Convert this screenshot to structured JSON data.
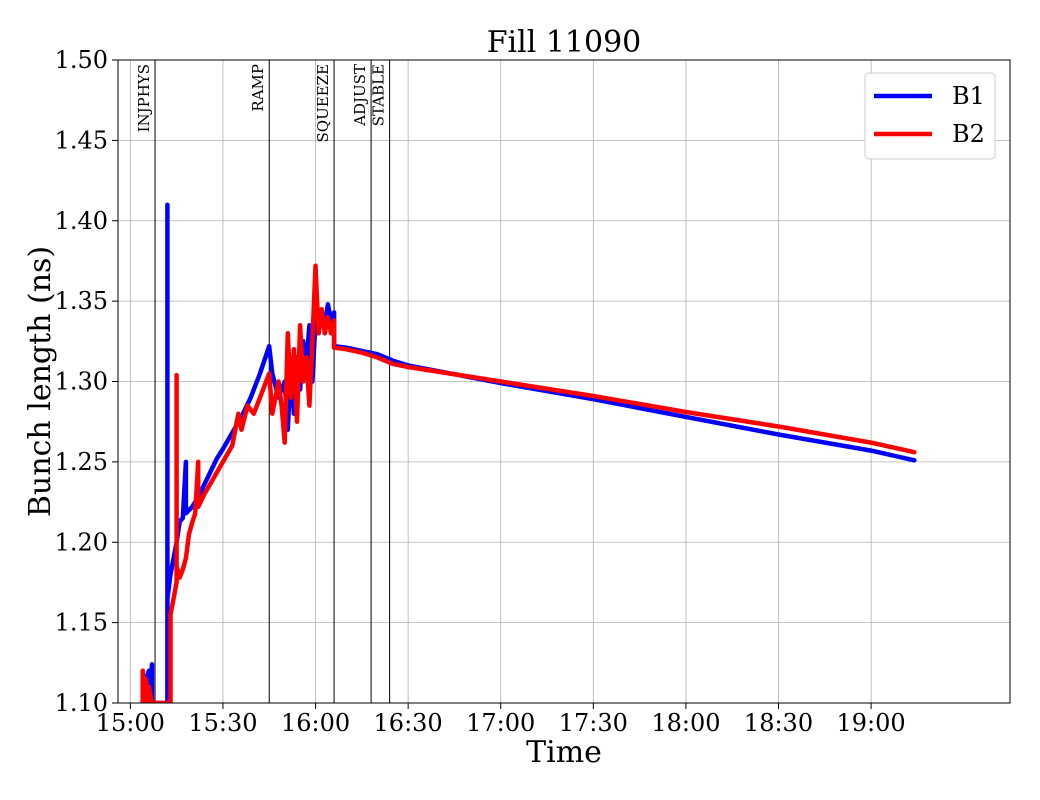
{
  "chart_data": {
    "type": "line",
    "title": "Fill 11090",
    "xlabel": "Time",
    "ylabel": "Bunch length (ns)",
    "x_unit": "time of day (HH:MM)",
    "xlim": [
      "14:56",
      "19:45"
    ],
    "ylim": [
      1.1,
      1.5
    ],
    "xticks": [
      "15:00",
      "15:30",
      "16:00",
      "16:30",
      "17:00",
      "17:30",
      "18:00",
      "18:30",
      "19:00"
    ],
    "yticks": [
      "1.10",
      "1.15",
      "1.20",
      "1.25",
      "1.30",
      "1.35",
      "1.40",
      "1.45",
      "1.50"
    ],
    "grid": true,
    "legend_position": "top-right",
    "phases": [
      {
        "name": "INJPHYS",
        "time": "15:08"
      },
      {
        "name": "RAMP",
        "time": "15:45"
      },
      {
        "name": "SQUEEZE",
        "time": "16:06"
      },
      {
        "name": "ADJUST",
        "time": "16:18"
      },
      {
        "name": "STABLE",
        "time": "16:24"
      }
    ],
    "series": [
      {
        "name": "B1",
        "color": "#0000ff",
        "points": [
          [
            "15:05",
            1.1
          ],
          [
            "15:05",
            1.115
          ],
          [
            "15:06",
            1.12
          ],
          [
            "15:06",
            1.1
          ],
          [
            "15:07",
            1.124
          ],
          [
            "15:07",
            1.1
          ],
          [
            "15:12",
            1.1
          ],
          [
            "15:12",
            1.41
          ],
          [
            "15:12",
            1.165
          ],
          [
            "15:13",
            1.18
          ],
          [
            "15:14",
            1.19
          ],
          [
            "15:15",
            1.2
          ],
          [
            "15:16",
            1.213
          ],
          [
            "15:17",
            1.215
          ],
          [
            "15:18",
            1.25
          ],
          [
            "15:18",
            1.218
          ],
          [
            "15:20",
            1.222
          ],
          [
            "15:22",
            1.228
          ],
          [
            "15:24",
            1.236
          ],
          [
            "15:26",
            1.244
          ],
          [
            "15:28",
            1.252
          ],
          [
            "15:30",
            1.258
          ],
          [
            "15:33",
            1.268
          ],
          [
            "15:36",
            1.278
          ],
          [
            "15:39",
            1.29
          ],
          [
            "15:42",
            1.305
          ],
          [
            "15:45",
            1.322
          ],
          [
            "15:46",
            1.305
          ],
          [
            "15:48",
            1.29
          ],
          [
            "15:50",
            1.3
          ],
          [
            "15:51",
            1.27
          ],
          [
            "15:52",
            1.31
          ],
          [
            "15:53",
            1.28
          ],
          [
            "15:54",
            1.315
          ],
          [
            "15:55",
            1.295
          ],
          [
            "15:56",
            1.325
          ],
          [
            "15:57",
            1.31
          ],
          [
            "15:58",
            1.335
          ],
          [
            "15:59",
            1.3
          ],
          [
            "16:00",
            1.338
          ],
          [
            "16:01",
            1.33
          ],
          [
            "16:02",
            1.343
          ],
          [
            "16:03",
            1.335
          ],
          [
            "16:04",
            1.348
          ],
          [
            "16:05",
            1.338
          ],
          [
            "16:06",
            1.343
          ],
          [
            "16:06",
            1.322
          ],
          [
            "16:10",
            1.321
          ],
          [
            "16:15",
            1.319
          ],
          [
            "16:20",
            1.317
          ],
          [
            "16:25",
            1.313
          ],
          [
            "16:30",
            1.31
          ],
          [
            "17:00",
            1.299
          ],
          [
            "17:30",
            1.289
          ],
          [
            "18:00",
            1.278
          ],
          [
            "18:30",
            1.267
          ],
          [
            "19:00",
            1.257
          ],
          [
            "19:14",
            1.251
          ]
        ]
      },
      {
        "name": "B2",
        "color": "#ff0000",
        "points": [
          [
            "15:04",
            1.1
          ],
          [
            "15:04",
            1.12
          ],
          [
            "15:05",
            1.1
          ],
          [
            "15:05",
            1.115
          ],
          [
            "15:06",
            1.1
          ],
          [
            "15:06",
            1.11
          ],
          [
            "15:07",
            1.1
          ],
          [
            "15:13",
            1.1
          ],
          [
            "15:13",
            1.112
          ],
          [
            "15:13",
            1.155
          ],
          [
            "15:14",
            1.165
          ],
          [
            "15:15",
            1.175
          ],
          [
            "15:15",
            1.304
          ],
          [
            "15:15",
            1.185
          ],
          [
            "15:16",
            1.178
          ],
          [
            "15:17",
            1.183
          ],
          [
            "15:18",
            1.19
          ],
          [
            "15:19",
            1.205
          ],
          [
            "15:20",
            1.212
          ],
          [
            "15:21",
            1.218
          ],
          [
            "15:22",
            1.25
          ],
          [
            "15:22",
            1.222
          ],
          [
            "15:24",
            1.23
          ],
          [
            "15:27",
            1.24
          ],
          [
            "15:30",
            1.25
          ],
          [
            "15:33",
            1.26
          ],
          [
            "15:35",
            1.28
          ],
          [
            "15:36",
            1.27
          ],
          [
            "15:38",
            1.285
          ],
          [
            "15:40",
            1.28
          ],
          [
            "15:42",
            1.29
          ],
          [
            "15:45",
            1.305
          ],
          [
            "15:46",
            1.28
          ],
          [
            "15:48",
            1.3
          ],
          [
            "15:49",
            1.285
          ],
          [
            "15:50",
            1.262
          ],
          [
            "15:51",
            1.33
          ],
          [
            "15:52",
            1.29
          ],
          [
            "15:53",
            1.32
          ],
          [
            "15:54",
            1.275
          ],
          [
            "15:55",
            1.335
          ],
          [
            "15:56",
            1.3
          ],
          [
            "15:57",
            1.315
          ],
          [
            "15:58",
            1.285
          ],
          [
            "15:59",
            1.325
          ],
          [
            "16:00",
            1.372
          ],
          [
            "16:01",
            1.33
          ],
          [
            "16:02",
            1.345
          ],
          [
            "16:03",
            1.33
          ],
          [
            "16:04",
            1.34
          ],
          [
            "16:05",
            1.33
          ],
          [
            "16:06",
            1.338
          ],
          [
            "16:06",
            1.321
          ],
          [
            "16:10",
            1.32
          ],
          [
            "16:15",
            1.318
          ],
          [
            "16:20",
            1.315
          ],
          [
            "16:25",
            1.311
          ],
          [
            "16:30",
            1.309
          ],
          [
            "17:00",
            1.3
          ],
          [
            "17:30",
            1.291
          ],
          [
            "18:00",
            1.281
          ],
          [
            "18:30",
            1.272
          ],
          [
            "19:00",
            1.262
          ],
          [
            "19:14",
            1.256
          ]
        ]
      }
    ]
  }
}
